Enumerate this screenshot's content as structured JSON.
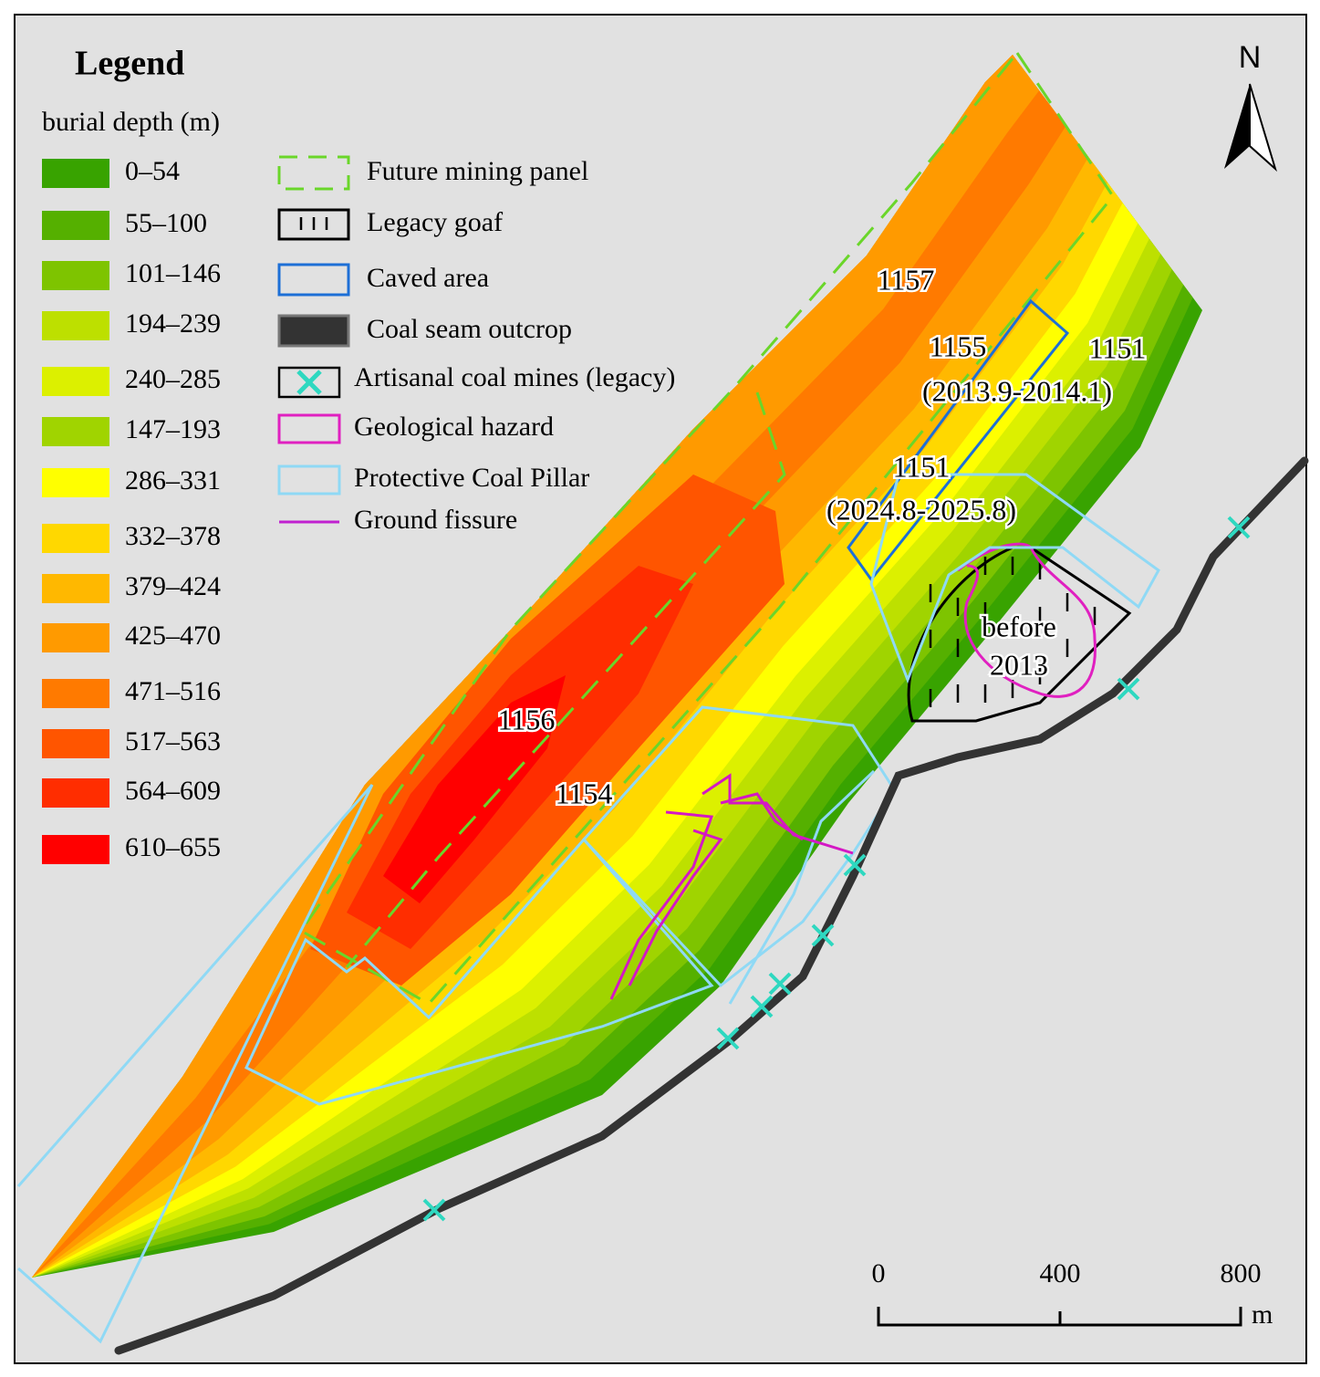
{
  "legend": {
    "title": "Legend",
    "subtitle": "burial depth (m)",
    "depth_classes": [
      {
        "label": "0–54",
        "color": "#38a300"
      },
      {
        "label": "55–100",
        "color": "#55b000"
      },
      {
        "label": "101–146",
        "color": "#7ec400"
      },
      {
        "label": "194–239",
        "color": "#bde000"
      },
      {
        "label": "240–285",
        "color": "#dcf000"
      },
      {
        "label": "147–193",
        "color": "#a0d400"
      },
      {
        "label": "286–331",
        "color": "#ffff00"
      },
      {
        "label": "332–378",
        "color": "#ffd800"
      },
      {
        "label": "379–424",
        "color": "#ffb800"
      },
      {
        "label": "425–470",
        "color": "#ff9a00"
      },
      {
        "label": "471–516",
        "color": "#ff7a00"
      },
      {
        "label": "517–563",
        "color": "#ff5500"
      },
      {
        "label": "564–609",
        "color": "#ff2d00"
      },
      {
        "label": "610–655",
        "color": "#ff0000"
      }
    ],
    "symbols": [
      "Future mining panel",
      "Legacy goaf",
      "Caved area",
      "Coal seam outcrop",
      "Artisanal coal mines (legacy)",
      "Geological hazard",
      "Protective Coal Pillar",
      "Ground fissure"
    ]
  },
  "map": {
    "labels": [
      "1157",
      "1155",
      "1151",
      "(2013.9-2014.1)",
      "1151",
      "(2024.8-2025.8)",
      "before",
      "2013",
      "1156",
      "1154"
    ]
  },
  "north": "N",
  "scale": {
    "ticks": [
      "0",
      "400",
      "800"
    ],
    "unit": "m"
  }
}
